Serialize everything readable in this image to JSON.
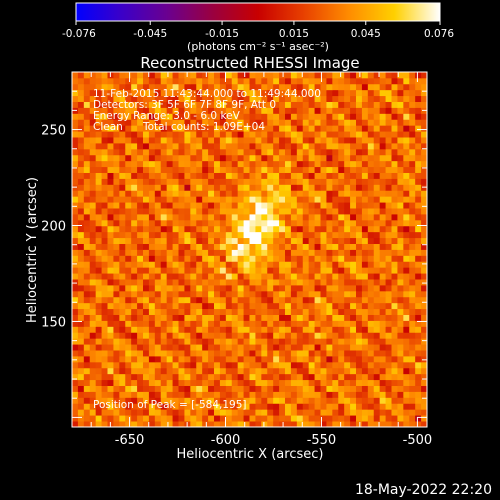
{
  "app": {
    "timestamp": "18-May-2022 22:20"
  },
  "colorbar": {
    "ticks": [
      "-0.076",
      "-0.045",
      "-0.015",
      "0.015",
      "0.045",
      "0.076"
    ],
    "unit_label": "(photons cm⁻² s⁻¹ asec⁻²)",
    "range": [
      -0.076,
      0.076
    ],
    "colormap": [
      "#0000ff",
      "#3b00c8",
      "#6a0090",
      "#9a0040",
      "#c80000",
      "#e84000",
      "#ff8c00",
      "#ffd000",
      "#ffffff"
    ]
  },
  "chart_data": {
    "type": "heatmap",
    "title": "Reconstructed RHESSI Image",
    "xlabel": "Heliocentric X (arcsec)",
    "ylabel": "Heliocentric Y (arcsec)",
    "xlim": [
      -680,
      -495
    ],
    "ylim": [
      95,
      280
    ],
    "x_ticks": [
      "-650",
      "-600",
      "-550",
      "-500"
    ],
    "x_tick_values": [
      -650,
      -600,
      -550,
      -500
    ],
    "y_ticks": [
      "150",
      "200",
      "250"
    ],
    "y_tick_values": [
      150,
      200,
      250
    ],
    "annotations": [
      "11-Feb-2015 11:43:44.000 to 11:49:44.000",
      "Detectors: 3F 5F 6F 7F 8F 9F, Att 0",
      "Energy Range: 3.0 - 6.0 keV",
      "Clean",
      "Total counts: 1.09E+04"
    ],
    "peak_label": "Position of Peak = [-584,195]",
    "peak": {
      "x": -584,
      "y": 195,
      "value": 0.076
    },
    "source": {
      "x": -584,
      "y": 200,
      "sigma_major": 16,
      "sigma_minor": 8,
      "angle_deg": 60
    },
    "background_level": 0.03
  }
}
